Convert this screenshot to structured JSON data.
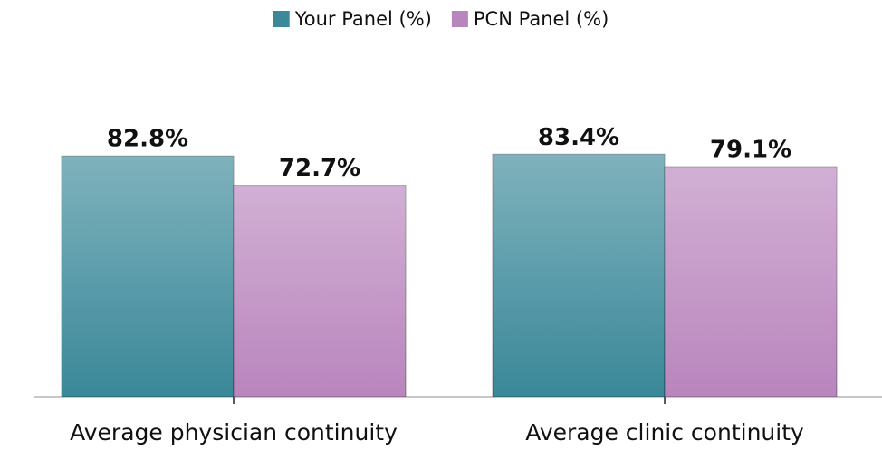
{
  "chart_data": {
    "type": "bar",
    "categories": [
      "Average physician continuity",
      "Average clinic continuity"
    ],
    "series": [
      {
        "name": "Your Panel (%)",
        "color": "#3a8899",
        "values": [
          82.8,
          83.4
        ],
        "value_labels": [
          "82.8%",
          "83.4%"
        ]
      },
      {
        "name": "PCN Panel (%)",
        "color": "#b985bd",
        "values": [
          72.7,
          79.1
        ],
        "value_labels": [
          "72.7%",
          "79.1%"
        ]
      }
    ],
    "ylim": [
      0,
      100
    ]
  }
}
